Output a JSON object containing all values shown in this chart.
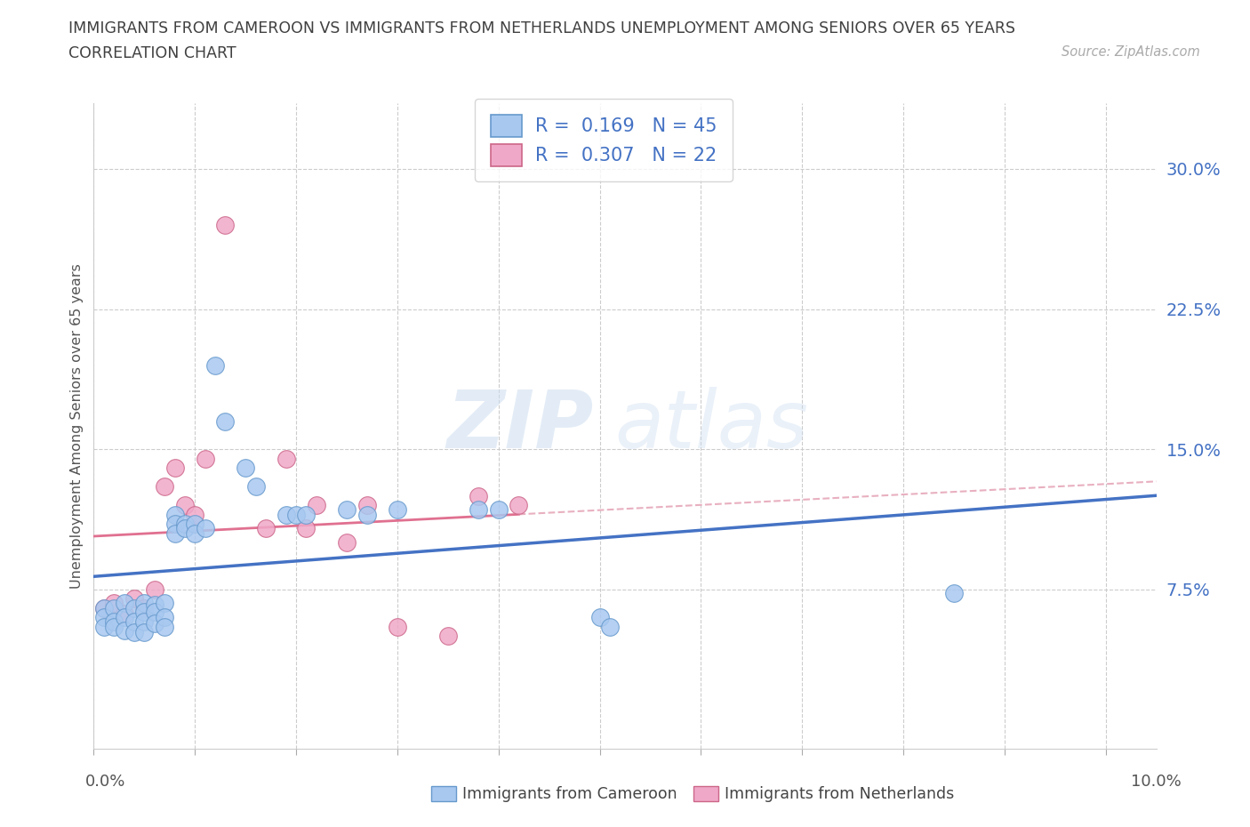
{
  "title_line1": "IMMIGRANTS FROM CAMEROON VS IMMIGRANTS FROM NETHERLANDS UNEMPLOYMENT AMONG SENIORS OVER 65 YEARS",
  "title_line2": "CORRELATION CHART",
  "source": "Source: ZipAtlas.com",
  "ylabel": "Unemployment Among Seniors over 65 years",
  "r_cameroon": "0.169",
  "n_cameroon": "45",
  "r_netherlands": "0.307",
  "n_netherlands": "22",
  "color_cameroon": "#a8c8f0",
  "color_netherlands": "#f0a8c8",
  "color_cameroon_edge": "#6699cc",
  "color_netherlands_edge": "#cc6688",
  "color_cameroon_trend": "#4472c4",
  "color_netherlands_trend": "#e07090",
  "color_neth_trend_dashed": "#e8b0c0",
  "legend_label_cameroon": "Immigrants from Cameroon",
  "legend_label_netherlands": "Immigrants from Netherlands",
  "text_blue": "#4472c4",
  "title_color": "#404040",
  "xlim": [
    0.0,
    0.105
  ],
  "ylim": [
    -0.01,
    0.335
  ],
  "yticks": [
    0.075,
    0.15,
    0.225,
    0.3
  ],
  "ytick_labels": [
    "7.5%",
    "15.0%",
    "22.5%",
    "30.0%"
  ],
  "cameroon_x": [
    0.001,
    0.001,
    0.001,
    0.002,
    0.002,
    0.002,
    0.003,
    0.003,
    0.003,
    0.004,
    0.004,
    0.004,
    0.005,
    0.005,
    0.005,
    0.005,
    0.006,
    0.006,
    0.006,
    0.007,
    0.007,
    0.007,
    0.008,
    0.008,
    0.008,
    0.009,
    0.009,
    0.01,
    0.01,
    0.011,
    0.012,
    0.013,
    0.015,
    0.016,
    0.019,
    0.02,
    0.021,
    0.025,
    0.027,
    0.03,
    0.038,
    0.04,
    0.05,
    0.051,
    0.085
  ],
  "cameroon_y": [
    0.065,
    0.06,
    0.055,
    0.065,
    0.058,
    0.055,
    0.068,
    0.06,
    0.053,
    0.065,
    0.058,
    0.052,
    0.068,
    0.063,
    0.058,
    0.052,
    0.067,
    0.063,
    0.057,
    0.068,
    0.06,
    0.055,
    0.115,
    0.11,
    0.105,
    0.11,
    0.108,
    0.11,
    0.105,
    0.108,
    0.195,
    0.165,
    0.14,
    0.13,
    0.115,
    0.115,
    0.115,
    0.118,
    0.115,
    0.118,
    0.118,
    0.118,
    0.06,
    0.055,
    0.073
  ],
  "netherlands_x": [
    0.001,
    0.002,
    0.003,
    0.004,
    0.005,
    0.006,
    0.007,
    0.008,
    0.009,
    0.01,
    0.011,
    0.013,
    0.017,
    0.019,
    0.021,
    0.022,
    0.025,
    0.027,
    0.03,
    0.035,
    0.038,
    0.042
  ],
  "netherlands_y": [
    0.065,
    0.068,
    0.062,
    0.07,
    0.065,
    0.075,
    0.13,
    0.14,
    0.12,
    0.115,
    0.145,
    0.27,
    0.108,
    0.145,
    0.108,
    0.12,
    0.1,
    0.12,
    0.055,
    0.05,
    0.125,
    0.12
  ]
}
